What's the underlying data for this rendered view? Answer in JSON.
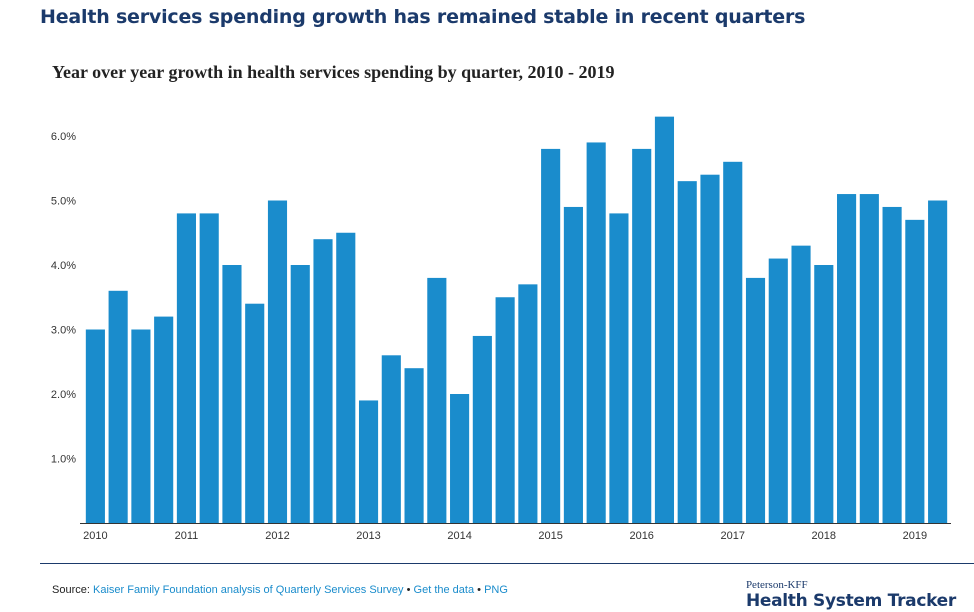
{
  "headline": "Health services spending growth has remained stable in recent quarters",
  "chart_data": {
    "type": "bar",
    "title": "Year over year growth in health services spending by quarter, 2010 - 2019",
    "xlabel": "",
    "ylabel": "",
    "ylim": [
      0,
      6.5
    ],
    "y_ticks": [
      "1.0%",
      "2.0%",
      "3.0%",
      "4.0%",
      "5.0%",
      "6.0%"
    ],
    "y_tick_values": [
      1,
      2,
      3,
      4,
      5,
      6
    ],
    "grid": false,
    "x_tick_labels": [
      "2010",
      "2011",
      "2012",
      "2013",
      "2014",
      "2015",
      "2016",
      "2017",
      "2018",
      "2019"
    ],
    "categories": [
      "2010 Q1",
      "2010 Q2",
      "2010 Q3",
      "2010 Q4",
      "2011 Q1",
      "2011 Q2",
      "2011 Q3",
      "2011 Q4",
      "2012 Q1",
      "2012 Q2",
      "2012 Q3",
      "2012 Q4",
      "2013 Q1",
      "2013 Q2",
      "2013 Q3",
      "2013 Q4",
      "2014 Q1",
      "2014 Q2",
      "2014 Q3",
      "2014 Q4",
      "2015 Q1",
      "2015 Q2",
      "2015 Q3",
      "2015 Q4",
      "2016 Q1",
      "2016 Q2",
      "2016 Q3",
      "2016 Q4",
      "2017 Q1",
      "2017 Q2",
      "2017 Q3",
      "2017 Q4",
      "2018 Q1",
      "2018 Q2",
      "2018 Q3",
      "2018 Q4",
      "2019 Q1",
      "2019 Q2"
    ],
    "values": [
      3.0,
      3.6,
      3.0,
      3.2,
      4.8,
      4.8,
      4.0,
      3.4,
      5.0,
      4.0,
      4.4,
      4.5,
      1.9,
      2.6,
      2.4,
      3.8,
      2.0,
      2.9,
      3.5,
      3.7,
      5.8,
      4.9,
      5.9,
      4.8,
      5.8,
      6.3,
      5.3,
      5.4,
      5.6,
      3.8,
      4.1,
      4.3,
      4.0,
      5.1,
      5.1,
      4.9,
      4.7,
      5.0
    ],
    "bar_color": "#1a8ccc"
  },
  "footer": {
    "source_label": "Source:",
    "source_link": "Kaiser Family Foundation analysis of Quarterly Services Survey",
    "separator": "•",
    "data_link": "Get the data",
    "png_link": "PNG"
  },
  "brand": {
    "top": "Peterson-KFF",
    "main": "Health System Tracker"
  }
}
